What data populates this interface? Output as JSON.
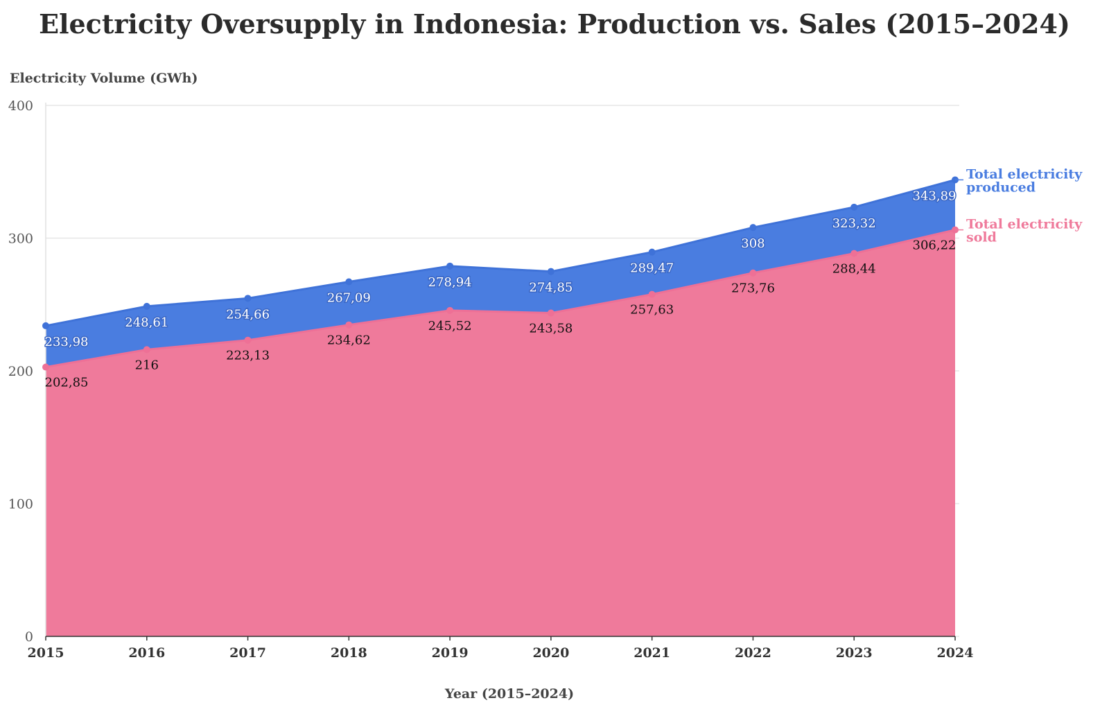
{
  "chart_data": {
    "type": "area",
    "title": "Electricity Oversupply in Indonesia: Production vs. Sales (2015–2024)",
    "xlabel": "Year (2015–2024)",
    "ylabel": "Electricity Volume (GWh)",
    "ylim": [
      0,
      400
    ],
    "yticks": [
      "0",
      "100",
      "200",
      "300",
      "400"
    ],
    "categories": [
      "2015",
      "2016",
      "2017",
      "2018",
      "2019",
      "2020",
      "2021",
      "2022",
      "2023",
      "2024"
    ],
    "series": [
      {
        "name": "Total electricity produced",
        "name_lines": [
          "Total electricity",
          "produced"
        ],
        "color": "#4a7de0",
        "values": [
          233.98,
          248.61,
          254.66,
          267.09,
          278.94,
          274.85,
          289.47,
          308,
          323.32,
          343.89
        ],
        "labels": [
          "233,98",
          "248,61",
          "254,66",
          "267,09",
          "278,94",
          "274,85",
          "289,47",
          "308",
          "323,32",
          "343,89"
        ]
      },
      {
        "name": "Total electricity sold",
        "name_lines": [
          "Total electricity",
          "sold"
        ],
        "color": "#ef7a9b",
        "values": [
          202.85,
          216,
          223.13,
          234.62,
          245.52,
          243.58,
          257.63,
          273.76,
          288.44,
          306.22
        ],
        "labels": [
          "202,85",
          "216",
          "223,13",
          "234,62",
          "245,52",
          "243,58",
          "257,63",
          "273,76",
          "288,44",
          "306,22"
        ]
      }
    ],
    "grid": true,
    "legend": "right"
  }
}
